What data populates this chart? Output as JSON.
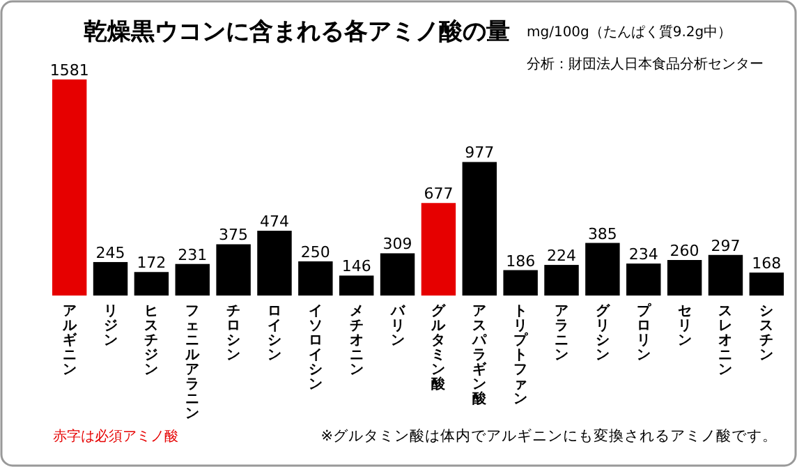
{
  "chart_data": {
    "type": "bar",
    "title": "乾燥黒ウコンに含まれる各アミノ酸の量",
    "subtitle": "mg/100g（たんぱく質9.2g中）",
    "categories": [
      "アルギニン",
      "リジン",
      "ヒスチジン",
      "フェニルアラニン",
      "チロシン",
      "ロイシン",
      "イソロイシン",
      "メチオニン",
      "バリン",
      "グルタミン酸",
      "アスパラギン酸",
      "トリプトファン",
      "アラニン",
      "グリシン",
      "プロリン",
      "セリン",
      "スレオニン",
      "シスチン"
    ],
    "values": [
      1581,
      245,
      172,
      231,
      375,
      474,
      250,
      146,
      309,
      677,
      977,
      186,
      224,
      385,
      234,
      260,
      297,
      168
    ],
    "colors": [
      "#e60000",
      "#000000",
      "#000000",
      "#000000",
      "#000000",
      "#000000",
      "#000000",
      "#000000",
      "#000000",
      "#e60000",
      "#000000",
      "#000000",
      "#000000",
      "#000000",
      "#000000",
      "#000000",
      "#000000",
      "#000000"
    ],
    "data_labels": true,
    "annotations": [
      "分析：財団法人日本食品分析センター",
      "赤字は必須アミノ酸",
      "※グルタミン酸は体内でアルギニンにも変換されるアミノ酸です。"
    ]
  }
}
